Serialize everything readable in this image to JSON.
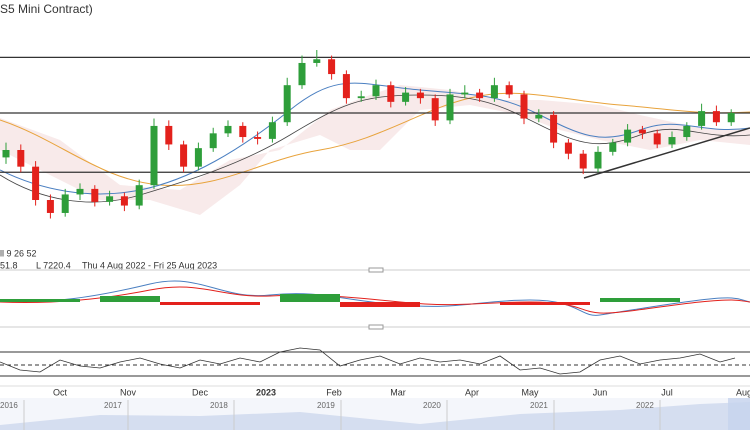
{
  "chart_data": {
    "type": "candlestick",
    "title": "S5 Mini Contract)",
    "indicator_label": "ll 9 26 52",
    "info": [
      "51.8",
      "L 7220.4",
      "Thu 4 Aug 2022 - Fri 25 Aug 2023"
    ],
    "month_labels": [
      "Oct",
      "Nov",
      "Dec",
      "2023",
      "Feb",
      "Mar",
      "Apr",
      "May",
      "Jun",
      "Jul",
      "Aug"
    ],
    "navigator_labels": [
      "2016",
      "2017",
      "2018",
      "2019",
      "2020",
      "2021",
      "2022"
    ],
    "open": [
      7250,
      7290,
      7200,
      7020,
      6950,
      7050,
      7080,
      7010,
      7040,
      6990,
      7100,
      7420,
      7320,
      7200,
      7300,
      7380,
      7420,
      7360,
      7350,
      7440,
      7640,
      7760,
      7780,
      7700,
      7570,
      7580,
      7640,
      7550,
      7600,
      7570,
      7450,
      7590,
      7600,
      7570,
      7640,
      7590,
      7460,
      7480,
      7330,
      7270,
      7190,
      7280,
      7330,
      7400,
      7380,
      7320,
      7360,
      7420,
      7500,
      7440
    ],
    "high": [
      7330,
      7320,
      7230,
      7050,
      7080,
      7110,
      7100,
      7070,
      7060,
      7130,
      7460,
      7450,
      7340,
      7330,
      7410,
      7450,
      7440,
      7390,
      7470,
      7680,
      7800,
      7830,
      7800,
      7720,
      7610,
      7670,
      7660,
      7630,
      7620,
      7590,
      7620,
      7640,
      7620,
      7680,
      7660,
      7610,
      7510,
      7500,
      7350,
      7290,
      7310,
      7350,
      7430,
      7420,
      7400,
      7390,
      7440,
      7540,
      7530,
      7510
    ],
    "low": [
      7215,
      7170,
      6990,
      6920,
      6930,
      7020,
      6985,
      6990,
      6960,
      6970,
      7080,
      7290,
      7170,
      7180,
      7280,
      7360,
      7330,
      7320,
      7330,
      7420,
      7620,
      7740,
      7670,
      7540,
      7550,
      7560,
      7520,
      7530,
      7540,
      7420,
      7430,
      7570,
      7550,
      7550,
      7570,
      7430,
      7440,
      7300,
      7240,
      7160,
      7170,
      7260,
      7310,
      7350,
      7300,
      7300,
      7340,
      7400,
      7420,
      7420
    ],
    "close": [
      7290,
      7200,
      7020,
      6950,
      7050,
      7080,
      7010,
      7040,
      6990,
      7100,
      7420,
      7320,
      7200,
      7300,
      7380,
      7420,
      7360,
      7350,
      7440,
      7640,
      7760,
      7780,
      7700,
      7570,
      7580,
      7640,
      7550,
      7600,
      7570,
      7450,
      7590,
      7600,
      7570,
      7640,
      7590,
      7460,
      7480,
      7330,
      7270,
      7190,
      7280,
      7330,
      7400,
      7380,
      7320,
      7360,
      7420,
      7500,
      7440,
      7490
    ],
    "levels": [
      7790,
      7490,
      7170
    ],
    "ylim": [
      6750,
      8100
    ],
    "up_color": "#2e9e3a",
    "down_color": "#e3211c"
  }
}
